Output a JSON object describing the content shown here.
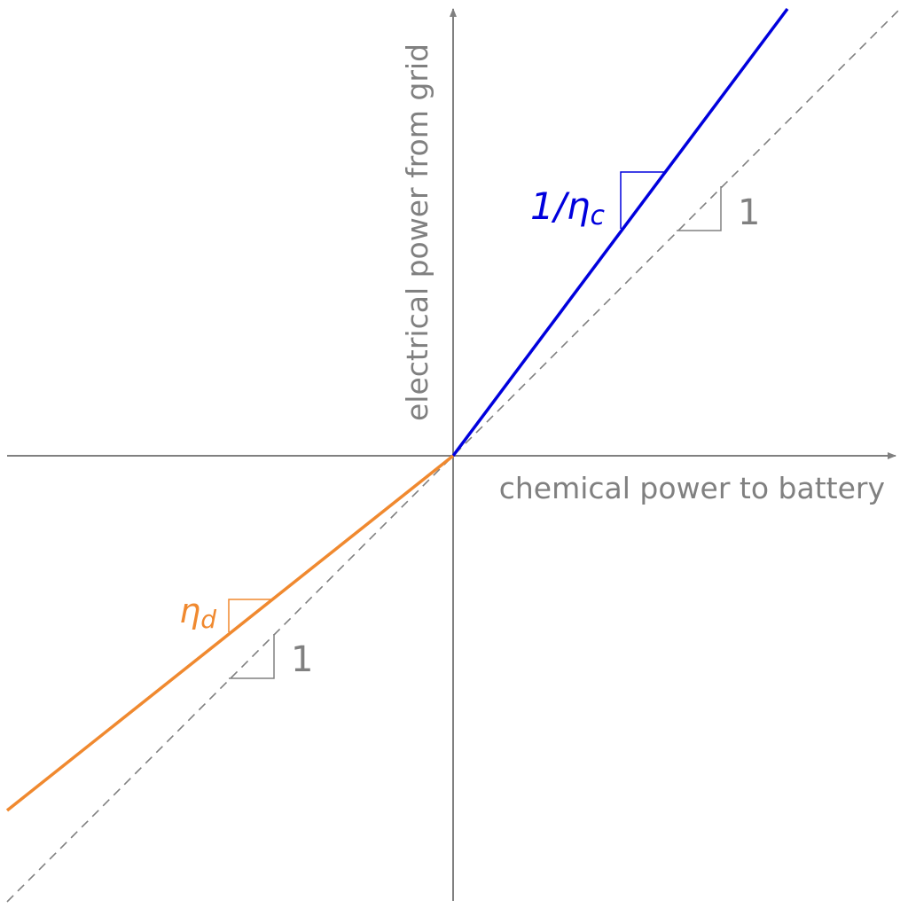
{
  "axes": {
    "x_label": "chemical power to battery",
    "y_label": "electrical power from grid"
  },
  "charge": {
    "label": "1/η",
    "subscript": "c",
    "unit_slope": "1"
  },
  "discharge": {
    "label": "η",
    "subscript": "d",
    "unit_slope": "1"
  }
}
